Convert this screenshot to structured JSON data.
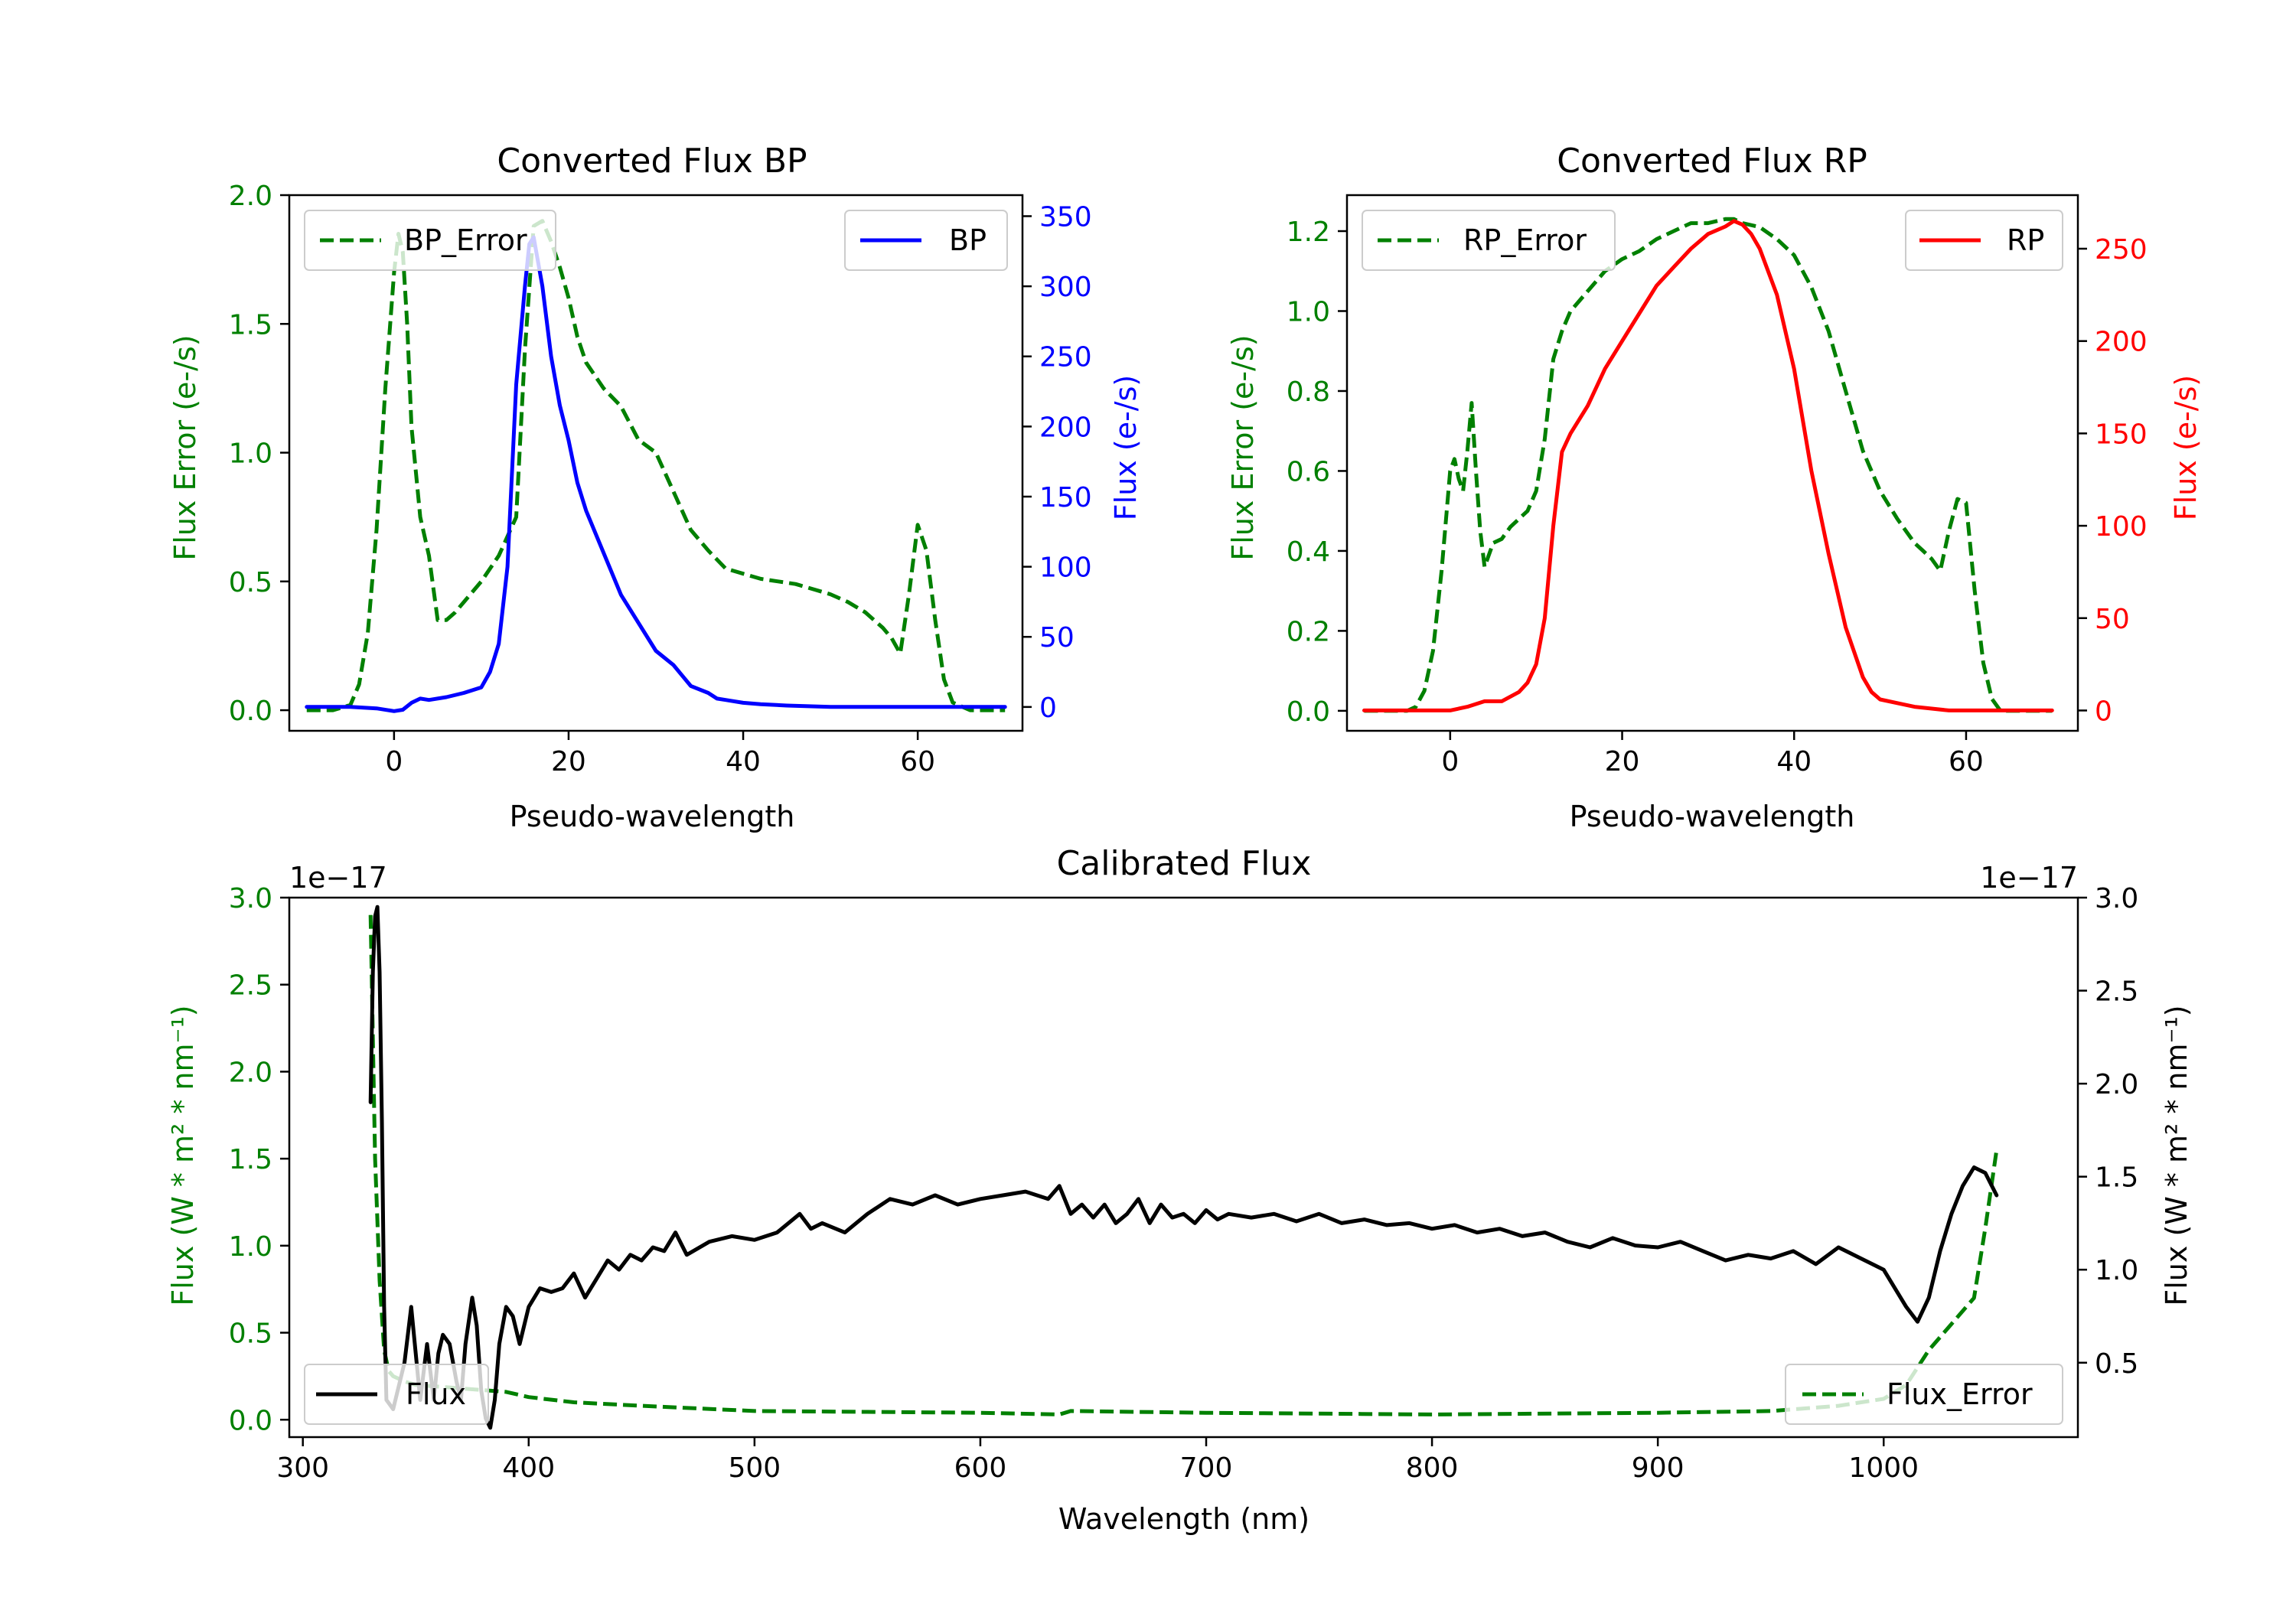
{
  "figure": {
    "colors": {
      "green": "#008000",
      "blue": "#0000ff",
      "red": "#ff0000",
      "black": "#000000"
    }
  },
  "chart_data": [
    {
      "id": "bp",
      "type": "line",
      "title": "Converted Flux BP",
      "xlabel": "Pseudo-wavelength",
      "xlim": [
        -12,
        72
      ],
      "xticks": [
        0,
        20,
        40,
        60
      ],
      "xtick_labels": [
        "0",
        "20",
        "40",
        "60"
      ],
      "y_left": {
        "label": "Flux Error (e-/s)",
        "lim": [
          -0.08,
          2.0
        ],
        "ticks": [
          0.0,
          0.5,
          1.0,
          1.5,
          2.0
        ],
        "tick_labels": [
          "0.0",
          "0.5",
          "1.0",
          "1.5",
          "2.0"
        ],
        "color": "#008000"
      },
      "y_right": {
        "label": "Flux (e-/s)",
        "lim": [
          -17,
          365
        ],
        "ticks": [
          0,
          50,
          100,
          150,
          200,
          250,
          300,
          350
        ],
        "tick_labels": [
          "0",
          "50",
          "100",
          "150",
          "200",
          "250",
          "300",
          "350"
        ],
        "color": "#0000ff"
      },
      "legend_left": {
        "label": "BP_Error",
        "placement": "upper left"
      },
      "legend_right": {
        "label": "BP",
        "placement": "upper right"
      },
      "series": [
        {
          "name": "BP_Error",
          "axis": "left",
          "style": "dashed",
          "color": "#008000",
          "x": [
            -10,
            -7,
            -5,
            -4,
            -3,
            -2,
            -1,
            0,
            0.5,
            1,
            1.5,
            2,
            3,
            4,
            5,
            6,
            7,
            8,
            10,
            12,
            14,
            15,
            16,
            17,
            18,
            19,
            20,
            21,
            22,
            24,
            26,
            28,
            30,
            32,
            34,
            36,
            38,
            40,
            42,
            44,
            46,
            48,
            50,
            52,
            54,
            56,
            57,
            58,
            59,
            60,
            61,
            62,
            63,
            64,
            66,
            68,
            70
          ],
          "y": [
            0.0,
            0.0,
            0.02,
            0.1,
            0.3,
            0.7,
            1.25,
            1.7,
            1.85,
            1.78,
            1.5,
            1.1,
            0.75,
            0.6,
            0.35,
            0.35,
            0.38,
            0.42,
            0.5,
            0.6,
            0.75,
            1.4,
            1.88,
            1.9,
            1.82,
            1.72,
            1.6,
            1.45,
            1.35,
            1.25,
            1.18,
            1.05,
            1.0,
            0.85,
            0.7,
            0.62,
            0.55,
            0.53,
            0.51,
            0.5,
            0.49,
            0.47,
            0.45,
            0.42,
            0.38,
            0.32,
            0.28,
            0.22,
            0.45,
            0.72,
            0.62,
            0.35,
            0.12,
            0.03,
            0.0,
            0.0,
            0.0
          ]
        },
        {
          "name": "BP",
          "axis": "right",
          "style": "solid",
          "color": "#0000ff",
          "x": [
            -10,
            -5,
            -2,
            0,
            1,
            2,
            3,
            4,
            6,
            8,
            10,
            11,
            12,
            13,
            14,
            15,
            15.5,
            16,
            17,
            18,
            19,
            20,
            21,
            22,
            24,
            26,
            28,
            30,
            32,
            34,
            36,
            37,
            38,
            40,
            42,
            45,
            50,
            55,
            60,
            65,
            70
          ],
          "y": [
            0,
            0,
            -1,
            -3,
            -2,
            3,
            6,
            5,
            7,
            10,
            14,
            25,
            45,
            100,
            230,
            300,
            330,
            335,
            300,
            250,
            215,
            190,
            160,
            140,
            110,
            80,
            60,
            40,
            30,
            15,
            10,
            6,
            5,
            3,
            2,
            1,
            0,
            0,
            0,
            0,
            0
          ]
        }
      ]
    },
    {
      "id": "rp",
      "type": "line",
      "title": "Converted Flux RP",
      "xlabel": "Pseudo-wavelength",
      "xlim": [
        -12,
        73
      ],
      "xticks": [
        0,
        20,
        40,
        60
      ],
      "xtick_labels": [
        "0",
        "20",
        "40",
        "60"
      ],
      "y_left": {
        "label": "Flux Error (e-/s)",
        "lim": [
          -0.05,
          1.29
        ],
        "ticks": [
          0.0,
          0.2,
          0.4,
          0.6,
          0.8,
          1.0,
          1.2
        ],
        "tick_labels": [
          "0.0",
          "0.2",
          "0.4",
          "0.6",
          "0.8",
          "1.0",
          "1.2"
        ],
        "color": "#008000"
      },
      "y_right": {
        "label": "Flux (e-/s)",
        "lim": [
          -11,
          279
        ],
        "ticks": [
          0,
          50,
          100,
          150,
          200,
          250
        ],
        "tick_labels": [
          "0",
          "50",
          "100",
          "150",
          "200",
          "250"
        ],
        "color": "#ff0000"
      },
      "legend_left": {
        "label": "RP_Error",
        "placement": "upper left"
      },
      "legend_right": {
        "label": "RP",
        "placement": "upper right"
      },
      "series": [
        {
          "name": "RP_Error",
          "axis": "left",
          "style": "dashed",
          "color": "#008000",
          "x": [
            -10,
            -5,
            -4,
            -3,
            -2,
            -1,
            0,
            0.5,
            1,
            1.5,
            2,
            2.5,
            3,
            3.5,
            4,
            5,
            6,
            7,
            8,
            9,
            10,
            11,
            12,
            13,
            14,
            16,
            18,
            20,
            22,
            24,
            26,
            28,
            30,
            32,
            33,
            34,
            36,
            38,
            40,
            42,
            44,
            46,
            48,
            50,
            52,
            54,
            55,
            56,
            57,
            58,
            59,
            60,
            61,
            62,
            63,
            64,
            66,
            70
          ],
          "y": [
            0.0,
            0.0,
            0.01,
            0.05,
            0.15,
            0.35,
            0.6,
            0.63,
            0.58,
            0.55,
            0.65,
            0.77,
            0.6,
            0.45,
            0.36,
            0.42,
            0.43,
            0.46,
            0.48,
            0.5,
            0.55,
            0.68,
            0.88,
            0.95,
            1.0,
            1.05,
            1.1,
            1.13,
            1.15,
            1.18,
            1.2,
            1.22,
            1.22,
            1.23,
            1.23,
            1.22,
            1.21,
            1.18,
            1.14,
            1.06,
            0.95,
            0.8,
            0.65,
            0.55,
            0.48,
            0.42,
            0.4,
            0.38,
            0.35,
            0.45,
            0.53,
            0.52,
            0.3,
            0.12,
            0.03,
            0.0,
            0.0,
            0.0
          ]
        },
        {
          "name": "RP",
          "axis": "right",
          "style": "solid",
          "color": "#ff0000",
          "x": [
            -10,
            -5,
            0,
            2,
            4,
            6,
            8,
            9,
            10,
            11,
            12,
            13,
            14,
            16,
            18,
            20,
            22,
            24,
            26,
            28,
            30,
            32,
            33,
            34,
            35,
            36,
            38,
            40,
            42,
            44,
            46,
            48,
            49,
            50,
            52,
            54,
            56,
            58,
            60,
            62,
            70
          ],
          "y": [
            0,
            0,
            0,
            2,
            5,
            5,
            10,
            15,
            25,
            50,
            100,
            140,
            150,
            165,
            185,
            200,
            215,
            230,
            240,
            250,
            258,
            262,
            265,
            263,
            258,
            250,
            225,
            185,
            130,
            85,
            45,
            18,
            10,
            6,
            4,
            2,
            1,
            0,
            0,
            0,
            0
          ]
        }
      ]
    },
    {
      "id": "calibrated",
      "type": "line",
      "title": "Calibrated Flux",
      "xlabel": "Wavelength (nm)",
      "xlim": [
        294,
        1086
      ],
      "xticks": [
        300,
        400,
        500,
        600,
        700,
        800,
        900,
        1000
      ],
      "xtick_labels": [
        "300",
        "400",
        "500",
        "600",
        "700",
        "800",
        "900",
        "1000"
      ],
      "y_left": {
        "label": "Flux (W * m² * nm⁻¹)",
        "offset": "1e−17",
        "lim": [
          -0.1,
          3.0
        ],
        "ticks": [
          0.0,
          0.5,
          1.0,
          1.5,
          2.0,
          2.5,
          3.0
        ],
        "tick_labels": [
          "0.0",
          "0.5",
          "1.0",
          "1.5",
          "2.0",
          "2.5",
          "3.0"
        ],
        "color": "#008000"
      },
      "y_right": {
        "label": "Flux (W * m² * nm⁻¹)",
        "offset": "1e−17",
        "lim": [
          0.1,
          3.0
        ],
        "ticks": [
          0.5,
          1.0,
          1.5,
          2.0,
          2.5,
          3.0
        ],
        "tick_labels": [
          "0.5",
          "1.0",
          "1.5",
          "2.0",
          "2.5",
          "3.0"
        ],
        "color": "#000000"
      },
      "legend_left": {
        "label": "Flux",
        "placement": "lower left"
      },
      "legend_right": {
        "label": "Flux_Error",
        "placement": "lower right"
      },
      "series": [
        {
          "name": "Flux_Error",
          "axis": "left",
          "style": "dashed",
          "color": "#008000",
          "x": [
            330,
            332,
            334,
            336,
            338,
            340,
            345,
            350,
            360,
            370,
            380,
            390,
            400,
            420,
            450,
            500,
            550,
            600,
            635,
            640,
            700,
            800,
            900,
            950,
            980,
            1000,
            1010,
            1020,
            1030,
            1040,
            1045,
            1050
          ],
          "y": [
            2.9,
            1.5,
            0.8,
            0.4,
            0.28,
            0.25,
            0.22,
            0.2,
            0.19,
            0.18,
            0.17,
            0.16,
            0.13,
            0.1,
            0.08,
            0.05,
            0.045,
            0.04,
            0.03,
            0.05,
            0.04,
            0.03,
            0.04,
            0.05,
            0.08,
            0.12,
            0.2,
            0.4,
            0.55,
            0.7,
            1.1,
            1.55
          ]
        },
        {
          "name": "Flux",
          "axis": "right",
          "style": "solid",
          "color": "#000000",
          "x": [
            330,
            331,
            332,
            333,
            334,
            335,
            336,
            337,
            340,
            345,
            348,
            350,
            352,
            355,
            358,
            360,
            362,
            365,
            368,
            370,
            372,
            375,
            377,
            379,
            381,
            383,
            385,
            387,
            390,
            393,
            396,
            400,
            405,
            410,
            415,
            420,
            425,
            430,
            435,
            440,
            445,
            450,
            455,
            460,
            465,
            470,
            480,
            490,
            500,
            510,
            520,
            525,
            530,
            540,
            550,
            560,
            570,
            580,
            590,
            600,
            610,
            620,
            630,
            635,
            640,
            645,
            650,
            655,
            660,
            665,
            670,
            675,
            680,
            685,
            690,
            695,
            700,
            705,
            710,
            720,
            730,
            740,
            750,
            760,
            770,
            780,
            790,
            800,
            810,
            820,
            830,
            840,
            850,
            860,
            870,
            880,
            890,
            900,
            910,
            920,
            930,
            940,
            950,
            960,
            970,
            980,
            990,
            1000,
            1010,
            1015,
            1020,
            1025,
            1030,
            1035,
            1040,
            1045,
            1050
          ],
          "y": [
            1.9,
            2.6,
            2.9,
            2.95,
            2.6,
            1.8,
            0.8,
            0.3,
            0.25,
            0.5,
            0.8,
            0.55,
            0.3,
            0.6,
            0.3,
            0.55,
            0.65,
            0.6,
            0.4,
            0.3,
            0.6,
            0.85,
            0.7,
            0.35,
            0.2,
            0.15,
            0.3,
            0.6,
            0.8,
            0.75,
            0.6,
            0.8,
            0.9,
            0.88,
            0.9,
            0.98,
            0.85,
            0.95,
            1.05,
            1.0,
            1.08,
            1.05,
            1.12,
            1.1,
            1.2,
            1.08,
            1.15,
            1.18,
            1.16,
            1.2,
            1.3,
            1.22,
            1.25,
            1.2,
            1.3,
            1.38,
            1.35,
            1.4,
            1.35,
            1.38,
            1.4,
            1.42,
            1.38,
            1.45,
            1.3,
            1.35,
            1.28,
            1.35,
            1.25,
            1.3,
            1.38,
            1.25,
            1.35,
            1.28,
            1.3,
            1.25,
            1.32,
            1.27,
            1.3,
            1.28,
            1.3,
            1.26,
            1.3,
            1.25,
            1.27,
            1.24,
            1.25,
            1.22,
            1.24,
            1.2,
            1.22,
            1.18,
            1.2,
            1.15,
            1.12,
            1.17,
            1.13,
            1.12,
            1.15,
            1.1,
            1.05,
            1.08,
            1.06,
            1.1,
            1.03,
            1.12,
            1.06,
            1.0,
            0.8,
            0.72,
            0.85,
            1.1,
            1.3,
            1.45,
            1.55,
            1.52,
            1.4
          ]
        }
      ]
    }
  ]
}
